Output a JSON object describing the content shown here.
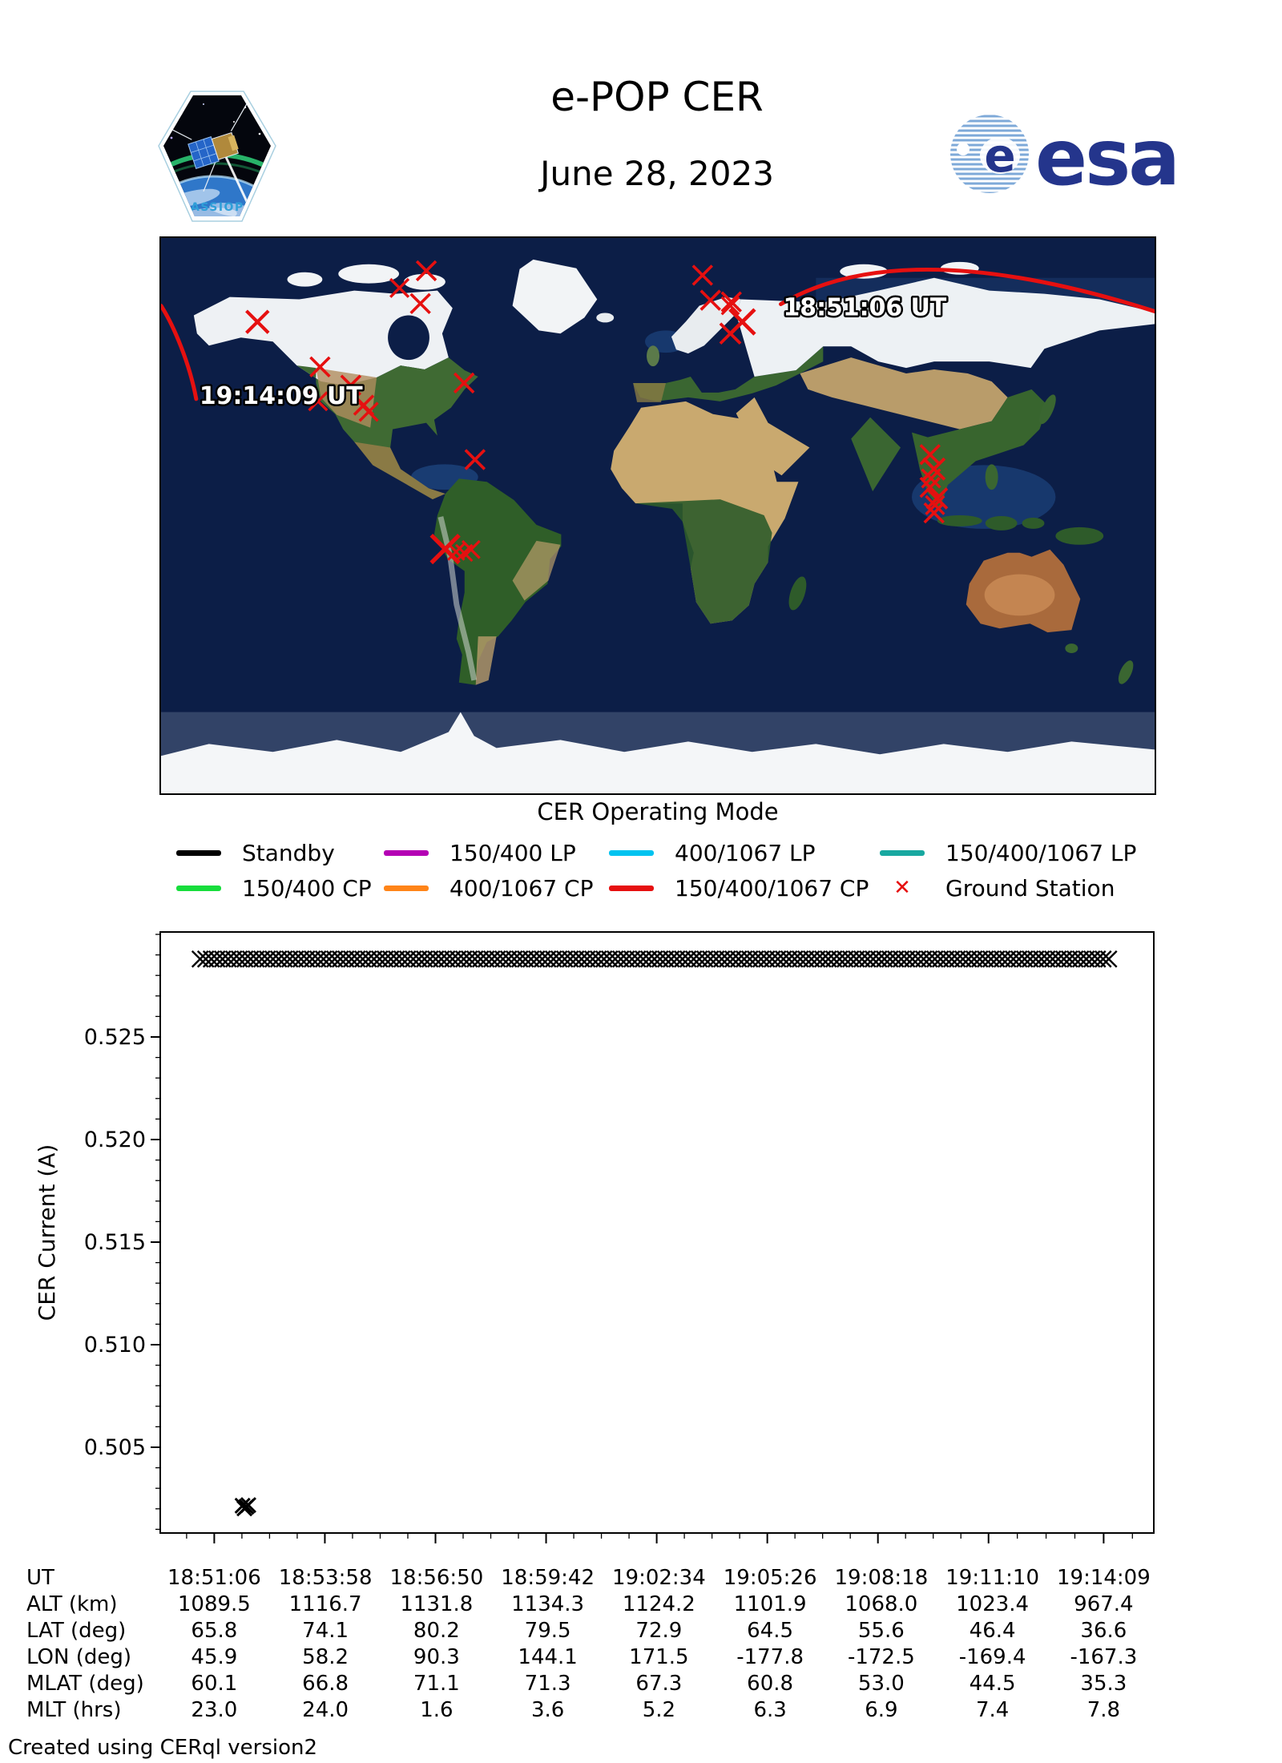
{
  "header": {
    "title": "e-POP CER",
    "date": "June 28, 2023",
    "patch_text": "CASSIOPE",
    "esa_text": "esa"
  },
  "map": {
    "caption": "CER Operating Mode",
    "track_start_label": "18:51:06 UT",
    "track_end_label": "19:14:09 UT",
    "track_color": "#e61010",
    "ground_station_color": "#e61010",
    "ground_stations": [
      [
        26.7,
        5.9,
        1.0
      ],
      [
        24.0,
        9.0,
        0.95
      ],
      [
        26.1,
        11.8,
        1.0
      ],
      [
        54.5,
        6.7,
        1.0
      ],
      [
        55.3,
        11.2,
        1.0
      ],
      [
        57.4,
        11.5,
        1.0
      ],
      [
        57.3,
        12.2,
        0.9
      ],
      [
        58.5,
        15.1,
        1.3
      ],
      [
        57.3,
        17.2,
        1.05
      ],
      [
        9.7,
        15.1,
        1.15
      ],
      [
        16.0,
        23.2,
        1.0
      ],
      [
        19.1,
        26.5,
        1.0
      ],
      [
        15.8,
        29.4,
        0.95
      ],
      [
        20.4,
        30.1,
        1.0
      ],
      [
        20.9,
        31.3,
        0.95
      ],
      [
        30.5,
        26.1,
        1.0
      ],
      [
        31.6,
        39.9,
        1.0
      ],
      [
        28.6,
        56.0,
        1.45
      ],
      [
        29.7,
        56.5,
        0.85
      ],
      [
        30.5,
        56.7,
        0.85
      ],
      [
        31.2,
        56.1,
        0.9
      ],
      [
        77.4,
        39.0,
        1.0
      ],
      [
        77.8,
        41.6,
        1.1
      ],
      [
        77.5,
        43.3,
        0.95
      ],
      [
        77.4,
        44.9,
        1.0
      ],
      [
        78.1,
        46.9,
        1.05
      ],
      [
        77.9,
        48.1,
        0.95
      ],
      [
        77.8,
        49.5,
        1.0
      ]
    ]
  },
  "legend": {
    "items": [
      {
        "label": "Standby",
        "color": "#000000",
        "marker": "line"
      },
      {
        "label": "150/400 LP",
        "color": "#b400b4",
        "marker": "line"
      },
      {
        "label": "400/1067 LP",
        "color": "#00c3f0",
        "marker": "line"
      },
      {
        "label": "150/400/1067 LP",
        "color": "#18a8a0",
        "marker": "line"
      },
      {
        "label": "150/400 CP",
        "color": "#17dd3c",
        "marker": "line"
      },
      {
        "label": "400/1067 CP",
        "color": "#ff8418",
        "marker": "line"
      },
      {
        "label": "150/400/1067 CP",
        "color": "#e61010",
        "marker": "line"
      },
      {
        "label": "Ground Station",
        "color": "#e61010",
        "marker": "x"
      }
    ]
  },
  "chart_data": {
    "type": "scatter",
    "title": "",
    "xlabel": "",
    "ylabel": "CER Current (A)",
    "marker": "x",
    "color": "#000000",
    "grid": false,
    "x_tick_labels": [
      "18:51:06",
      "18:53:58",
      "18:56:50",
      "18:59:42",
      "19:02:34",
      "19:05:26",
      "19:08:18",
      "19:11:10",
      "19:14:09"
    ],
    "x_tick_seconds": [
      0,
      172,
      344,
      516,
      688,
      860,
      1032,
      1204,
      1383
    ],
    "y_ticks": [
      0.505,
      0.51,
      0.515,
      0.52,
      0.525
    ],
    "y_tick_labels": [
      "0.505",
      "0.510",
      "0.515",
      "0.520",
      "0.525"
    ],
    "y_minor_step": 0.001,
    "ylim": [
      0.5008,
      0.5301
    ],
    "series": [
      {
        "name": "Standby",
        "kind": "band",
        "value": 0.5288,
        "t_start_s": -22,
        "t_end_s": 1399
      },
      {
        "name": "Standby-low",
        "kind": "points",
        "points": [
          [
            44,
            0.50215
          ],
          [
            50,
            0.5021
          ],
          [
            47,
            0.50202
          ],
          [
            53,
            0.50218
          ]
        ]
      }
    ]
  },
  "table": {
    "rows": [
      {
        "label": "UT",
        "values": [
          "18:51:06",
          "18:53:58",
          "18:56:50",
          "18:59:42",
          "19:02:34",
          "19:05:26",
          "19:08:18",
          "19:11:10",
          "19:14:09"
        ]
      },
      {
        "label": "ALT (km)",
        "values": [
          "1089.5",
          "1116.7",
          "1131.8",
          "1134.3",
          "1124.2",
          "1101.9",
          "1068.0",
          "1023.4",
          "967.4"
        ]
      },
      {
        "label": "LAT (deg)",
        "values": [
          "65.8",
          "74.1",
          "80.2",
          "79.5",
          "72.9",
          "64.5",
          "55.6",
          "46.4",
          "36.6"
        ]
      },
      {
        "label": "LON (deg)",
        "values": [
          "45.9",
          "58.2",
          "90.3",
          "144.1",
          "171.5",
          "-177.8",
          "-172.5",
          "-169.4",
          "-167.3"
        ]
      },
      {
        "label": "MLAT (deg)",
        "values": [
          "60.1",
          "66.8",
          "71.1",
          "71.3",
          "67.3",
          "60.8",
          "53.0",
          "44.5",
          "35.3"
        ]
      },
      {
        "label": "MLT (hrs)",
        "values": [
          "23.0",
          "24.0",
          "1.6",
          "3.6",
          "5.2",
          "6.3",
          "6.9",
          "7.4",
          "7.8"
        ]
      }
    ]
  },
  "footer": "Created using CERql version2"
}
